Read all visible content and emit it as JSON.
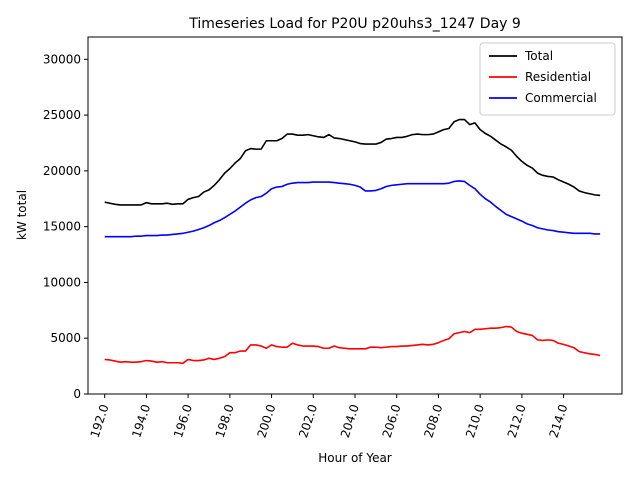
{
  "chart_data": {
    "type": "line",
    "title": "Timeseries Load for P20U p20uhs3_1247  Day 9",
    "xlabel": "Hour of Year",
    "ylabel": "kW total",
    "xlim": [
      191.2,
      216.8
    ],
    "ylim": [
      0,
      32000
    ],
    "xticks": [
      192.0,
      194.0,
      196.0,
      198.0,
      200.0,
      202.0,
      204.0,
      206.0,
      208.0,
      210.0,
      212.0,
      214.0
    ],
    "xtick_labels": [
      "192.0",
      "194.0",
      "196.0",
      "198.0",
      "200.0",
      "202.0",
      "204.0",
      "206.0",
      "208.0",
      "210.0",
      "212.0",
      "214.0"
    ],
    "yticks": [
      0,
      5000,
      10000,
      15000,
      20000,
      25000,
      30000
    ],
    "ytick_labels": [
      "0",
      "5000",
      "10000",
      "15000",
      "20000",
      "25000",
      "30000"
    ],
    "grid": false,
    "legend_position": "top-right",
    "x": [
      192.0,
      192.25,
      192.5,
      192.75,
      193.0,
      193.25,
      193.5,
      193.75,
      194.0,
      194.25,
      194.5,
      194.75,
      195.0,
      195.25,
      195.5,
      195.75,
      196.0,
      196.25,
      196.5,
      196.75,
      197.0,
      197.25,
      197.5,
      197.75,
      198.0,
      198.25,
      198.5,
      198.75,
      199.0,
      199.25,
      199.5,
      199.75,
      200.0,
      200.25,
      200.5,
      200.75,
      201.0,
      201.25,
      201.5,
      201.75,
      202.0,
      202.25,
      202.5,
      202.75,
      203.0,
      203.25,
      203.5,
      203.75,
      204.0,
      204.25,
      204.5,
      204.75,
      205.0,
      205.25,
      205.5,
      205.75,
      206.0,
      206.25,
      206.5,
      206.75,
      207.0,
      207.25,
      207.5,
      207.75,
      208.0,
      208.25,
      208.5,
      208.75,
      209.0,
      209.25,
      209.5,
      209.75,
      210.0,
      210.25,
      210.5,
      210.75,
      211.0,
      211.25,
      211.5,
      211.75,
      212.0,
      212.25,
      212.5,
      212.75,
      213.0,
      213.25,
      213.5,
      213.75,
      214.0,
      214.25,
      214.5,
      214.75,
      215.0,
      215.25,
      215.5,
      215.75
    ],
    "series": [
      {
        "name": "Total",
        "color": "#000000",
        "values": [
          17200,
          17100,
          17000,
          16950,
          16950,
          16950,
          16950,
          16950,
          17150,
          17050,
          17050,
          17050,
          17100,
          17000,
          17050,
          17050,
          17450,
          17600,
          17700,
          18100,
          18300,
          18700,
          19200,
          19800,
          20200,
          20700,
          21100,
          21800,
          22000,
          21950,
          21950,
          22700,
          22700,
          22700,
          22900,
          23300,
          23300,
          23200,
          23200,
          23250,
          23150,
          23050,
          23000,
          23250,
          22950,
          22900,
          22800,
          22700,
          22600,
          22450,
          22400,
          22400,
          22400,
          22550,
          22850,
          22900,
          23000,
          23000,
          23100,
          23250,
          23300,
          23250,
          23250,
          23300,
          23500,
          23700,
          23800,
          24400,
          24600,
          24600,
          24150,
          24300,
          23700,
          23350,
          23100,
          22750,
          22400,
          22150,
          21850,
          21300,
          20850,
          20500,
          20250,
          19800,
          19600,
          19500,
          19450,
          19200,
          19000,
          18800,
          18550,
          18200,
          18050,
          17950,
          17850,
          17800
        ]
      },
      {
        "name": "Residential",
        "color": "#ff0000",
        "values": [
          3100,
          3050,
          2950,
          2850,
          2900,
          2850,
          2850,
          2900,
          3000,
          2950,
          2850,
          2900,
          2800,
          2800,
          2800,
          2750,
          3100,
          3000,
          3000,
          3050,
          3200,
          3100,
          3200,
          3350,
          3700,
          3700,
          3850,
          3850,
          4400,
          4400,
          4300,
          4100,
          4400,
          4250,
          4200,
          4200,
          4550,
          4400,
          4300,
          4300,
          4300,
          4250,
          4100,
          4100,
          4300,
          4150,
          4100,
          4050,
          4050,
          4050,
          4050,
          4200,
          4200,
          4150,
          4200,
          4250,
          4250,
          4300,
          4300,
          4350,
          4400,
          4450,
          4400,
          4450,
          4600,
          4800,
          4950,
          5400,
          5500,
          5600,
          5500,
          5800,
          5800,
          5850,
          5900,
          5900,
          5950,
          6050,
          6000,
          5600,
          5450,
          5350,
          5250,
          4850,
          4800,
          4850,
          4800,
          4550,
          4450,
          4300,
          4150,
          3800,
          3700,
          3600,
          3550,
          3450
        ]
      },
      {
        "name": "Commercial",
        "color": "#0000ff",
        "values": [
          14100,
          14100,
          14100,
          14100,
          14100,
          14100,
          14150,
          14150,
          14200,
          14200,
          14200,
          14250,
          14250,
          14300,
          14350,
          14400,
          14500,
          14600,
          14750,
          14900,
          15100,
          15350,
          15550,
          15800,
          16100,
          16400,
          16750,
          17100,
          17400,
          17600,
          17700,
          18000,
          18400,
          18550,
          18600,
          18800,
          18900,
          18950,
          18950,
          18950,
          19000,
          19000,
          19000,
          19000,
          18950,
          18900,
          18850,
          18800,
          18700,
          18550,
          18200,
          18200,
          18250,
          18400,
          18600,
          18700,
          18750,
          18800,
          18850,
          18850,
          18850,
          18850,
          18850,
          18850,
          18850,
          18850,
          18900,
          19050,
          19100,
          19050,
          18700,
          18400,
          17900,
          17500,
          17200,
          16800,
          16450,
          16100,
          15900,
          15700,
          15500,
          15250,
          15100,
          14900,
          14800,
          14700,
          14650,
          14550,
          14500,
          14450,
          14400,
          14400,
          14400,
          14400,
          14350,
          14350
        ]
      }
    ]
  }
}
